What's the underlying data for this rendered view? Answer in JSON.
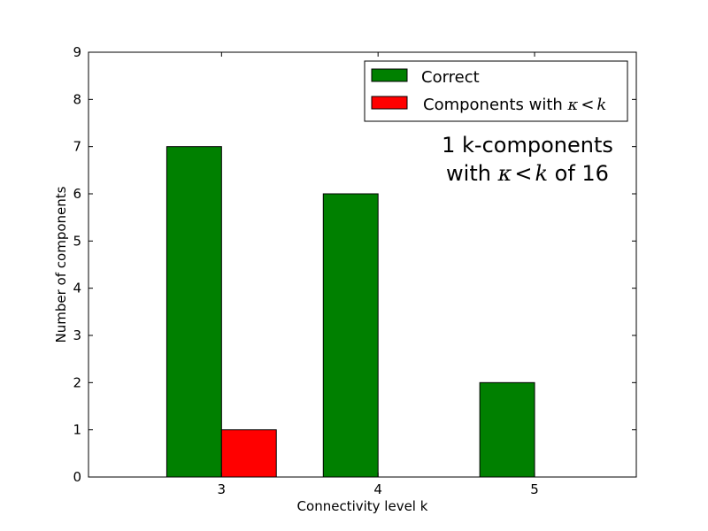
{
  "chart_data": {
    "type": "bar",
    "categories": [
      "3",
      "4",
      "5"
    ],
    "x": [
      3,
      4,
      5
    ],
    "series": [
      {
        "name": "Correct",
        "values": [
          7,
          6,
          2
        ],
        "color": "#008000"
      },
      {
        "name": "Components with κ<k",
        "values": [
          1,
          0,
          0
        ],
        "color": "#ff0000"
      }
    ],
    "legend": {
      "placement": "top-right",
      "correct_label": "Correct",
      "components_label_prefix": "Components with ",
      "components_label_kappa": "κ",
      "components_label_lt": "<",
      "components_label_k": "k"
    },
    "annotation": {
      "line1": "1 k-components",
      "line2_prefix": "with ",
      "line2_kappa": "κ",
      "line2_lt": "<",
      "line2_k": "k",
      "line2_suffix": " of 16"
    },
    "xlabel": "Connectivity level k",
    "ylabel": "Number of components",
    "xlim": [
      2.15,
      5.65
    ],
    "ylim": [
      0,
      9
    ],
    "yticks": [
      0,
      1,
      2,
      3,
      4,
      5,
      6,
      7,
      8,
      9
    ],
    "bar_width": 0.35,
    "grid": false,
    "colors": {
      "correct": "#008000",
      "kappa": "#ff0000"
    }
  }
}
